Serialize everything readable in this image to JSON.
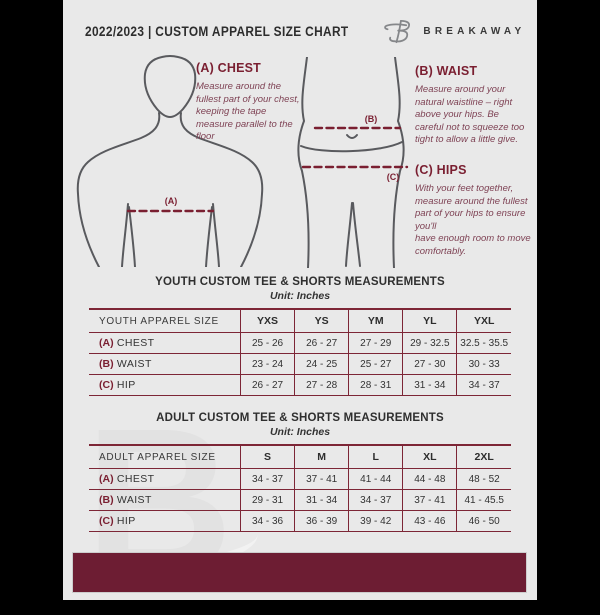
{
  "header": {
    "title": "2022/2023  |  CUSTOM APPAREL SIZE CHART",
    "brand": "BREAKAWAY"
  },
  "instructions": [
    {
      "heading": "(A) CHEST",
      "body": "Measure around the fullest part of your chest, keeping the tape measure parallel to the floor"
    },
    {
      "heading": "(B) WAIST",
      "body": "Measure around your natural waistline – right above your hips. Be careful not to squeeze too tight to allow a little give."
    },
    {
      "heading": "(C) HIPS",
      "body": "With your feet together, measure around the fullest part of your hips to ensure you'll\nhave enough room to move comfortably."
    }
  ],
  "diagram": {
    "chest_label": "(A)",
    "waist_label": "(B)",
    "hips_label": "(C)"
  },
  "youth_section": {
    "title": "YOUTH CUSTOM TEE & SHORTS MEASUREMENTS",
    "unit": "Unit: Inches",
    "table": {
      "header": [
        "YOUTH APPAREL SIZE",
        "YXS",
        "YS",
        "YM",
        "YL",
        "YXL"
      ],
      "rows": [
        {
          "prefix": "(A)",
          "label": "CHEST",
          "values": [
            "25 - 26",
            "26 - 27",
            "27 - 29",
            "29 - 32.5",
            "32.5 - 35.5"
          ]
        },
        {
          "prefix": "(B)",
          "label": "WAIST",
          "values": [
            "23 - 24",
            "24 - 25",
            "25 - 27",
            "27 - 30",
            "30 - 33"
          ]
        },
        {
          "prefix": "(C)",
          "label": "HIP",
          "values": [
            "26 - 27",
            "27 - 28",
            "28 - 31",
            "31 - 34",
            "34 - 37"
          ]
        }
      ]
    }
  },
  "adult_section": {
    "title": "ADULT CUSTOM TEE & SHORTS MEASUREMENTS",
    "unit": "Unit: Inches",
    "table": {
      "header": [
        "ADULT APPAREL SIZE",
        "S",
        "M",
        "L",
        "XL",
        "2XL"
      ],
      "rows": [
        {
          "prefix": "(A)",
          "label": "CHEST",
          "values": [
            "34 - 37",
            "37 - 41",
            "41 - 44",
            "44 - 48",
            "48 - 52"
          ]
        },
        {
          "prefix": "(B)",
          "label": "WAIST",
          "values": [
            "29 - 31",
            "31 - 34",
            "34 - 37",
            "37 - 41",
            "41 - 45.5"
          ]
        },
        {
          "prefix": "(C)",
          "label": "HIP",
          "values": [
            "34 - 36",
            "36 - 39",
            "39 - 42",
            "43 - 46",
            "46 - 50"
          ]
        }
      ]
    }
  },
  "watermark_letter": "B",
  "colors": {
    "accent_maroon": "#7a1f31",
    "table_border": "#7d2636",
    "footer_bar": "#6d1d33",
    "page_background": "#e9e9e9",
    "canvas_background": "#000000",
    "figure_line": "#595a5e",
    "dark_text": "#333333"
  }
}
